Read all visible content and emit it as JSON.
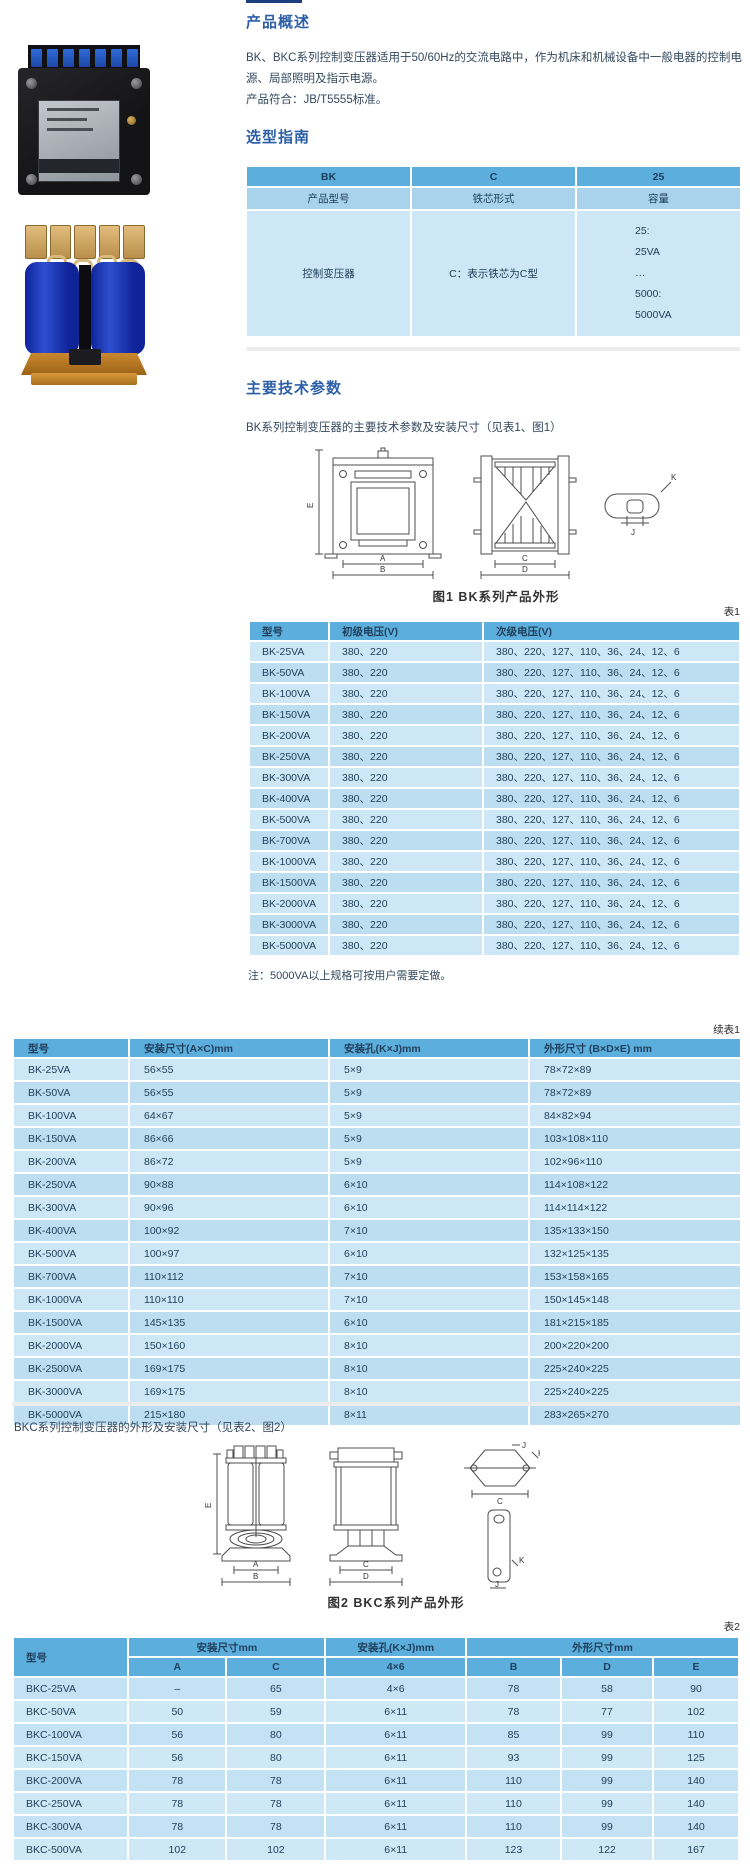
{
  "colors": {
    "heading_blue": "#2c5fa8",
    "table_header_blue": "#5caedd",
    "table_subheader_blue": "#a9d3ec",
    "row_light_blue": "#cde7f6",
    "row_alt_blue": "#bddef1",
    "photo_coil_blue": "#10249a",
    "photo_base_brass": "#c9882e"
  },
  "overview": {
    "title": "产品概述",
    "para1": "BK、BKC系列控制变压器适用于50/60Hz的交流电路中，作为机床和机械设备中一般电器的控制电源、局部照明及指示电源。",
    "para2": "产品符合：JB/T5555标准。"
  },
  "selection": {
    "title": "选型指南",
    "code_row": [
      "BK",
      "C",
      "25"
    ],
    "label_row": [
      "产品型号",
      "铁芯形式",
      "容量"
    ],
    "value_row": {
      "product": "控制变压器",
      "core": "C：表示铁芯为C型",
      "capacity_lines": [
        "25:",
        "25VA",
        "…",
        "5000:",
        "5000VA"
      ]
    }
  },
  "tech": {
    "title": "主要技术参数",
    "bk_intro": "BK系列控制变压器的主要技术参数及安装尺寸（见表1、图1）",
    "fig1_caption": "图1  BK系列产品外形",
    "table1_label": "表1",
    "note": "注：5000VA以上规格可按用户需要定做。",
    "cont_label": "续表1",
    "bkc_intro": "BKC系列控制变压器的外形及安装尺寸（见表2、图2）",
    "fig2_caption": "图2  BKC系列产品外形",
    "table2_label": "表2"
  },
  "table1": {
    "headers": [
      "型号",
      "初级电压(V)",
      "次级电压(V)"
    ],
    "rows": [
      [
        "BK-25VA",
        "380、220",
        "380、220、127、110、36、24、12、6"
      ],
      [
        "BK-50VA",
        "380、220",
        "380、220、127、110、36、24、12、6"
      ],
      [
        "BK-100VA",
        "380、220",
        "380、220、127、110、36、24、12、6"
      ],
      [
        "BK-150VA",
        "380、220",
        "380、220、127、110、36、24、12、6"
      ],
      [
        "BK-200VA",
        "380、220",
        "380、220、127、110、36、24、12、6"
      ],
      [
        "BK-250VA",
        "380、220",
        "380、220、127、110、36、24、12、6"
      ],
      [
        "BK-300VA",
        "380、220",
        "380、220、127、110、36、24、12、6"
      ],
      [
        "BK-400VA",
        "380、220",
        "380、220、127、110、36、24、12、6"
      ],
      [
        "BK-500VA",
        "380、220",
        "380、220、127、110、36、24、12、6"
      ],
      [
        "BK-700VA",
        "380、220",
        "380、220、127、110、36、24、12、6"
      ],
      [
        "BK-1000VA",
        "380、220",
        "380、220、127、110、36、24、12、6"
      ],
      [
        "BK-1500VA",
        "380、220",
        "380、220、127、110、36、24、12、6"
      ],
      [
        "BK-2000VA",
        "380、220",
        "380、220、127、110、36、24、12、6"
      ],
      [
        "BK-3000VA",
        "380、220",
        "380、220、127、110、36、24、12、6"
      ],
      [
        "BK-5000VA",
        "380、220",
        "380、220、127、110、36、24、12、6"
      ]
    ]
  },
  "cont_table": {
    "headers": [
      "型号",
      "安装尺寸(A×C)mm",
      "安装孔(K×J)mm",
      "外形尺寸 (B×D×E) mm"
    ],
    "rows": [
      [
        "BK-25VA",
        "56×55",
        "5×9",
        "78×72×89"
      ],
      [
        "BK-50VA",
        "56×55",
        "5×9",
        "78×72×89"
      ],
      [
        "BK-100VA",
        "64×67",
        "5×9",
        "84×82×94"
      ],
      [
        "BK-150VA",
        "86×66",
        "5×9",
        "103×108×110"
      ],
      [
        "BK-200VA",
        "86×72",
        "5×9",
        "102×96×110"
      ],
      [
        "BK-250VA",
        "90×88",
        "6×10",
        "114×108×122"
      ],
      [
        "BK-300VA",
        "90×96",
        "6×10",
        "114×114×122"
      ],
      [
        "BK-400VA",
        "100×92",
        "7×10",
        "135×133×150"
      ],
      [
        "BK-500VA",
        "100×97",
        "6×10",
        "132×125×135"
      ],
      [
        "BK-700VA",
        "110×112",
        "7×10",
        "153×158×165"
      ],
      [
        "BK-1000VA",
        "110×110",
        "7×10",
        "150×145×148"
      ],
      [
        "BK-1500VA",
        "145×135",
        "6×10",
        "181×215×185"
      ],
      [
        "BK-2000VA",
        "150×160",
        "8×10",
        "200×220×200"
      ],
      [
        "BK-2500VA",
        "169×175",
        "8×10",
        "225×240×225"
      ],
      [
        "BK-3000VA",
        "169×175",
        "8×10",
        "225×240×225"
      ],
      [
        "BK-5000VA",
        "215×180",
        "8×11",
        "283×265×270"
      ]
    ]
  },
  "table2": {
    "col_model": "型号",
    "group_install": "安装尺寸mm",
    "group_hole": "安装孔(K×J)mm",
    "group_dims": "外形尺寸mm",
    "sub_headers": [
      "A",
      "C",
      "4×6",
      "B",
      "D",
      "E"
    ],
    "rows": [
      [
        "BKC-25VA",
        "–",
        "65",
        "4×6",
        "78",
        "58",
        "90"
      ],
      [
        "BKC-50VA",
        "50",
        "59",
        "6×11",
        "78",
        "77",
        "102"
      ],
      [
        "BKC-100VA",
        "56",
        "80",
        "6×11",
        "85",
        "99",
        "110"
      ],
      [
        "BKC-150VA",
        "56",
        "80",
        "6×11",
        "93",
        "99",
        "125"
      ],
      [
        "BKC-200VA",
        "78",
        "78",
        "6×11",
        "110",
        "99",
        "140"
      ],
      [
        "BKC-250VA",
        "78",
        "78",
        "6×11",
        "110",
        "99",
        "140"
      ],
      [
        "BKC-300VA",
        "78",
        "78",
        "6×11",
        "110",
        "99",
        "140"
      ],
      [
        "BKC-500VA",
        "102",
        "102",
        "6×11",
        "123",
        "122",
        "167"
      ]
    ]
  },
  "fig1": {
    "e": "E",
    "a": "A",
    "b": "B",
    "c": "C",
    "d": "D",
    "k": "K",
    "j": "J"
  },
  "fig2": {
    "e": "E",
    "a": "A",
    "b": "B",
    "c": "C",
    "d": "D",
    "hex_c": "C",
    "hex_j": "J",
    "hex_k": "K",
    "bracket_k": "K",
    "bracket_j": "J"
  }
}
